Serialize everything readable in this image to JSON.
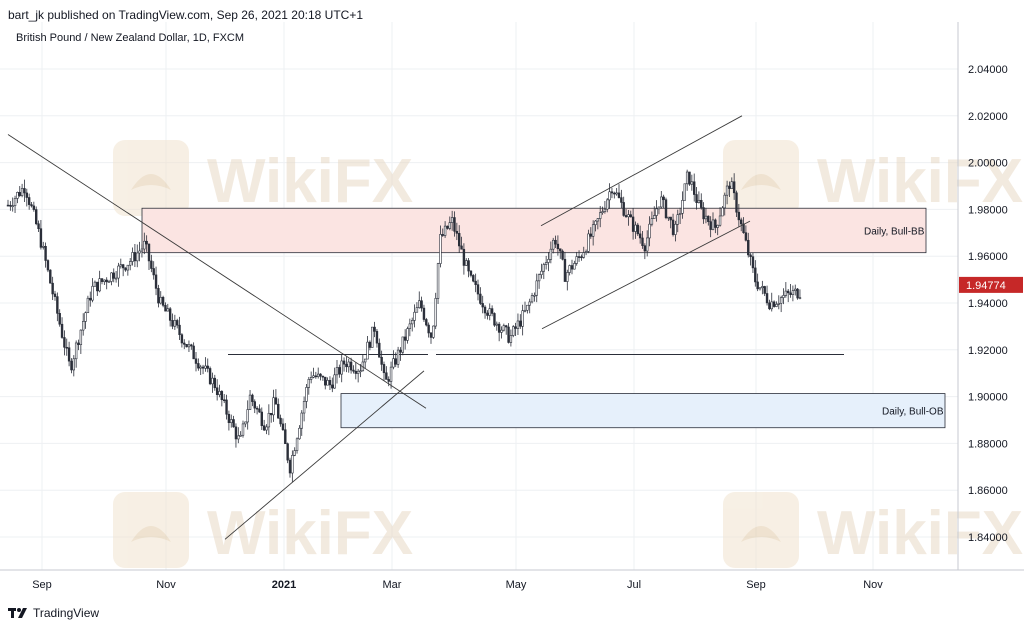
{
  "header": {
    "published_text": "bart_jk published on TradingView.com, Sep 26, 2021 20:18 UTC+1"
  },
  "footer": {
    "brand": "TradingView"
  },
  "watermark": {
    "text": "WikiFX"
  },
  "colors": {
    "candle": "#2a2e39",
    "grid": "#eef0f3",
    "bull_bb_fill": "#fbe4e2",
    "bull_ob_fill": "#e6f0fb",
    "price_tag": "#c62828",
    "trendline": "#3a3a3a",
    "watermark": "#e8d9c6"
  },
  "chart_data": {
    "type": "candlestick",
    "title": "British Pound / New Zealand Dollar, 1D, FXCM",
    "symbol": "GBPNZD",
    "interval": "1D",
    "x_tick_labels": [
      "Sep",
      "Nov",
      "2021",
      "Mar",
      "May",
      "Jul",
      "Sep",
      "Nov"
    ],
    "y_tick_labels": [
      "2.04000",
      "2.02000",
      "2.00000",
      "1.98000",
      "1.96000",
      "1.94000",
      "1.92000",
      "1.90000",
      "1.88000",
      "1.86000",
      "1.84000"
    ],
    "ylim": [
      1.827,
      2.053
    ],
    "last_price": 1.94774,
    "last_price_label": "1.94774",
    "grid": true,
    "close_path": [
      [
        0,
        1.978
      ],
      [
        25,
        1.99
      ],
      [
        40,
        1.968
      ],
      [
        70,
        1.912
      ],
      [
        92,
        1.946
      ],
      [
        130,
        1.958
      ],
      [
        145,
        1.965
      ],
      [
        160,
        1.94
      ],
      [
        190,
        1.92
      ],
      [
        215,
        1.905
      ],
      [
        240,
        1.88
      ],
      [
        250,
        1.9
      ],
      [
        265,
        1.888
      ],
      [
        275,
        1.898
      ],
      [
        290,
        1.87
      ],
      [
        310,
        1.91
      ],
      [
        330,
        1.905
      ],
      [
        345,
        1.915
      ],
      [
        360,
        1.912
      ],
      [
        375,
        1.93
      ],
      [
        385,
        1.905
      ],
      [
        400,
        1.92
      ],
      [
        420,
        1.94
      ],
      [
        432,
        1.925
      ],
      [
        440,
        1.967
      ],
      [
        452,
        1.975
      ],
      [
        470,
        1.95
      ],
      [
        490,
        1.935
      ],
      [
        510,
        1.925
      ],
      [
        528,
        1.938
      ],
      [
        540,
        1.952
      ],
      [
        555,
        1.968
      ],
      [
        565,
        1.952
      ],
      [
        580,
        1.96
      ],
      [
        595,
        1.972
      ],
      [
        612,
        1.99
      ],
      [
        630,
        1.975
      ],
      [
        645,
        1.965
      ],
      [
        660,
        1.985
      ],
      [
        675,
        1.97
      ],
      [
        688,
        1.995
      ],
      [
        700,
        1.98
      ],
      [
        715,
        1.972
      ],
      [
        730,
        1.992
      ],
      [
        740,
        1.975
      ],
      [
        755,
        1.95
      ],
      [
        770,
        1.94
      ],
      [
        785,
        1.943
      ],
      [
        800,
        1.945
      ]
    ],
    "zones": [
      {
        "label": "Daily, Bull-BB",
        "top": 1.9805,
        "bottom": 1.9615
      },
      {
        "label": "Daily, Bull-OB",
        "top": 1.9013,
        "bottom": 1.8867
      }
    ],
    "horizontal_lines": [
      {
        "price": 1.918,
        "x_start": 228,
        "x_end": 428
      },
      {
        "price": 1.918,
        "x_start": 436,
        "x_end": 844
      }
    ],
    "trendlines": [
      {
        "from": [
          8,
          2.012
        ],
        "to": [
          426,
          1.895
        ]
      },
      {
        "from": [
          225,
          1.839
        ],
        "to": [
          424,
          1.911
        ]
      },
      {
        "from": [
          541,
          1.973
        ],
        "to": [
          742,
          2.02
        ]
      },
      {
        "from": [
          542,
          1.929
        ],
        "to": [
          750,
          1.975
        ]
      }
    ]
  }
}
